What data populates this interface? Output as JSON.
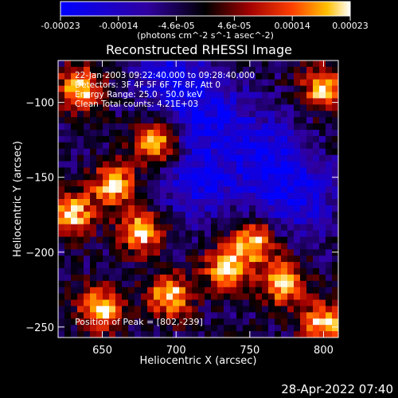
{
  "chart_data": {
    "type": "heatmap",
    "title": "Reconstructed RHESSI Image",
    "xlabel": "Heliocentric X (arcsec)",
    "ylabel": "Heliocentric Y (arcsec)",
    "xlim": [
      620,
      810
    ],
    "ylim": [
      -257,
      -72
    ],
    "xticks": [
      650,
      700,
      750,
      800
    ],
    "yticks": [
      -100,
      -150,
      -200,
      -250
    ],
    "colorbar": {
      "ticks": [
        "-0.00023",
        "-0.00014",
        "-4.6e-05",
        "4.6e-05",
        "0.00014",
        "0.00023"
      ],
      "unit_label": "(photons cm^-2 s^-1 asec^-2)",
      "min": -0.00023,
      "max": 0.00023
    },
    "annotations": [
      "22-Jan-2003 09:22:40.000 to 09:28:40.000",
      "Detectors: 3F 4F 5F 6F 7F 8F, Att 0",
      "Energy Range: 25.0 - 50.0 keV",
      "Clean    Total counts: 4.21E+03"
    ],
    "peak_label": "Position of Peak = [802,-239]",
    "colormap": [
      "#0000ff",
      "#3000a0",
      "#000000",
      "#a00000",
      "#ff4000",
      "#ffc000",
      "#ffffff"
    ]
  },
  "footer": {
    "timestamp": "28-Apr-2022 07:40"
  }
}
